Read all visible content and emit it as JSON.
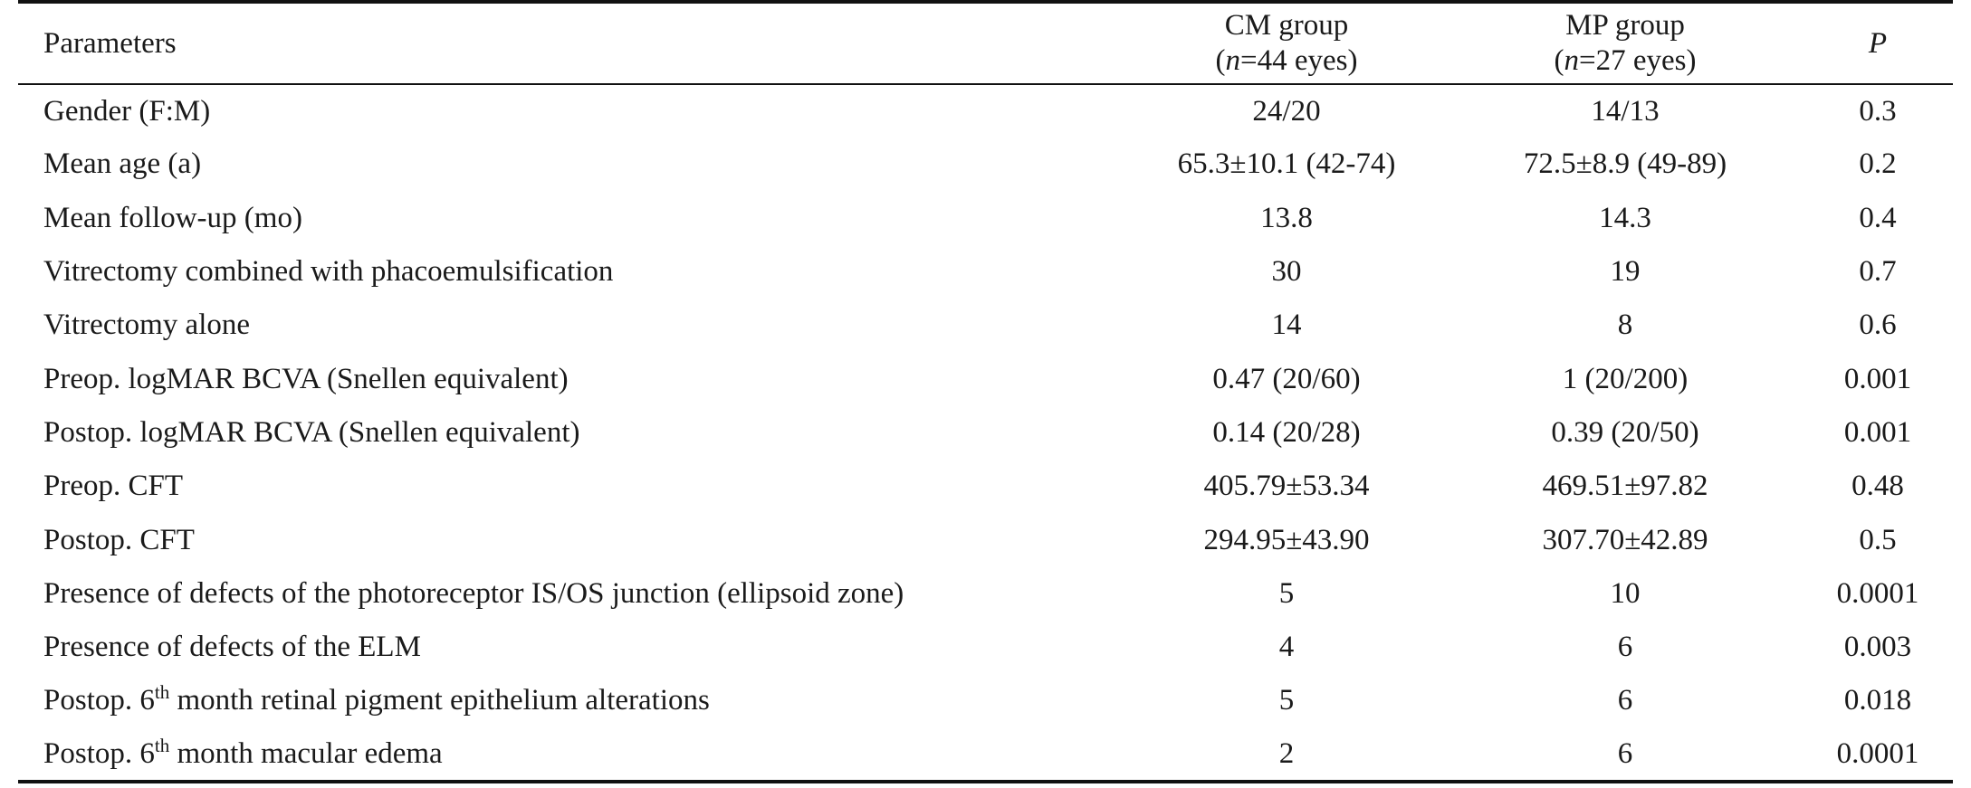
{
  "table": {
    "headers": {
      "parameters": "Parameters",
      "cm_group": {
        "line1": "CM group",
        "n_symbol": "n",
        "n_rest": "=44 eyes"
      },
      "mp_group": {
        "line1": "MP group",
        "n_symbol": "n",
        "n_rest": "=27 eyes"
      },
      "p": "P"
    },
    "rows": [
      {
        "parameter": "Gender (F:M)",
        "cm": "24/20",
        "mp": "14/13",
        "p": "0.3"
      },
      {
        "parameter": "Mean age (a)",
        "cm": "65.3±10.1 (42-74)",
        "mp": "72.5±8.9 (49-89)",
        "p": "0.2"
      },
      {
        "parameter": "Mean follow-up (mo)",
        "cm": "13.8",
        "mp": "14.3",
        "p": "0.4"
      },
      {
        "parameter": "Vitrectomy combined with phacoemulsification",
        "cm": "30",
        "mp": "19",
        "p": "0.7"
      },
      {
        "parameter": "Vitrectomy alone",
        "cm": "14",
        "mp": "8",
        "p": "0.6"
      },
      {
        "parameter": "Preop. logMAR BCVA (Snellen equivalent)",
        "cm": "0.47 (20/60)",
        "mp": "1 (20/200)",
        "p": "0.001"
      },
      {
        "parameter": "Postop. logMAR BCVA (Snellen equivalent)",
        "cm": "0.14 (20/28)",
        "mp": "0.39 (20/50)",
        "p": "0.001"
      },
      {
        "parameter": "Preop. CFT",
        "cm": "405.79±53.34",
        "mp": "469.51±97.82",
        "p": "0.48"
      },
      {
        "parameter": "Postop. CFT",
        "cm": "294.95±43.90",
        "mp": "307.70±42.89",
        "p": "0.5"
      },
      {
        "parameter": "Presence of defects of the photoreceptor IS/OS junction (ellipsoid zone)",
        "cm": "5",
        "mp": "10",
        "p": "0.0001"
      },
      {
        "parameter": "Presence of defects of the ELM",
        "cm": "4",
        "mp": "6",
        "p": "0.003"
      },
      {
        "parameter_pre": "Postop. 6",
        "parameter_sup": "th",
        "parameter_post": " month retinal pigment epithelium alterations",
        "cm": "5",
        "mp": "6",
        "p": "0.018"
      },
      {
        "parameter_pre": "Postop. 6",
        "parameter_sup": "th",
        "parameter_post": " month macular edema",
        "cm": "2",
        "mp": "6",
        "p": "0.0001"
      }
    ]
  }
}
